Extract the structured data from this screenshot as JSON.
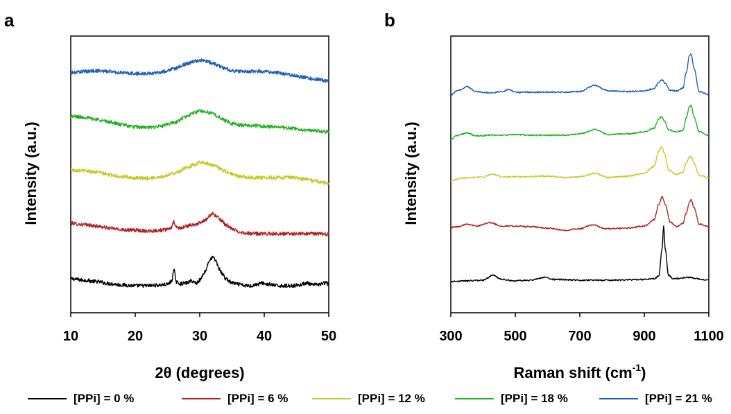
{
  "chart_data": [
    {
      "panel": "a",
      "type": "line",
      "xlabel": "2θ (degrees)",
      "ylabel": "Intensity (a.u.)",
      "xlim": [
        10,
        50
      ],
      "xticks": [
        10,
        20,
        30,
        40,
        50
      ],
      "y_tick_labels": false,
      "box": "left-bottom-right-top",
      "series": [
        {
          "name": "[PPi] = 0 %",
          "color": "#000000",
          "offset": 0,
          "x": [
            10,
            12,
            14,
            16,
            18,
            20,
            22,
            24,
            25,
            25.6,
            26,
            26.4,
            27,
            28,
            28.7,
            29.5,
            30,
            30.8,
            31.5,
            32,
            32.5,
            33,
            33.6,
            34,
            35,
            36,
            37,
            38,
            39,
            39.6,
            40.5,
            42,
            44,
            45.5,
            46.5,
            47.5,
            48.5,
            49.5,
            50
          ],
          "y": [
            18,
            16,
            14,
            11,
            9,
            8,
            8,
            9,
            10,
            14,
            30,
            13,
            11,
            12,
            15,
            12,
            16,
            28,
            44,
            49,
            44,
            32,
            24,
            18,
            12,
            10,
            8,
            8,
            10,
            12,
            10,
            8,
            8,
            9,
            12,
            9,
            10,
            12,
            10
          ]
        },
        {
          "name": "[PPi] = 6 %",
          "color": "#b22222",
          "offset": 70,
          "x": [
            10,
            12,
            14,
            16,
            18,
            20,
            22,
            24,
            25,
            25.6,
            26,
            26.4,
            27,
            28,
            29,
            30,
            30.8,
            31.5,
            32,
            32.6,
            33.4,
            34,
            35,
            36,
            37,
            38,
            40,
            42,
            44,
            46,
            48,
            50
          ],
          "y": [
            28,
            26,
            24,
            21,
            19,
            18,
            17,
            18,
            19,
            22,
            30,
            22,
            21,
            24,
            26,
            28,
            32,
            39,
            42,
            38,
            32,
            26,
            20,
            16,
            14,
            13,
            13,
            13,
            13,
            13,
            13,
            12
          ]
        },
        {
          "name": "[PPi] = 12 %",
          "color": "#c8c828",
          "offset": 150,
          "x": [
            10,
            12,
            14,
            16,
            18,
            20,
            22,
            24,
            26,
            28,
            29,
            30,
            31,
            32,
            33,
            34,
            35,
            36,
            38,
            40,
            42,
            44,
            46,
            48,
            50
          ],
          "y": [
            25,
            24,
            22,
            18,
            15,
            13,
            13,
            15,
            20,
            28,
            32,
            36,
            35,
            32,
            28,
            23,
            19,
            16,
            14,
            14,
            14,
            14,
            12,
            9,
            5
          ]
        },
        {
          "name": "[PPi] = 18 %",
          "color": "#22b022",
          "offset": 220,
          "x": [
            10,
            12,
            14,
            16,
            18,
            20,
            22,
            24,
            26,
            28,
            29,
            30,
            31,
            32,
            33,
            34,
            35,
            36,
            38,
            40,
            42,
            44,
            46,
            48,
            50
          ],
          "y": [
            32,
            31,
            28,
            24,
            20,
            17,
            16,
            18,
            23,
            32,
            37,
            40,
            39,
            36,
            31,
            26,
            22,
            20,
            19,
            18,
            17,
            15,
            13,
            11,
            10
          ]
        },
        {
          "name": "[PPi] = 21 %",
          "color": "#1f5fb8",
          "offset": 290,
          "x": [
            10,
            12,
            14,
            16,
            18,
            20,
            22,
            24,
            26,
            28,
            29,
            30,
            31,
            32,
            33,
            34,
            35,
            36,
            38,
            40,
            42,
            44,
            46,
            48,
            50
          ],
          "y": [
            25,
            27,
            28,
            27,
            25,
            24,
            24,
            26,
            31,
            38,
            41,
            43,
            42,
            39,
            35,
            31,
            28,
            27,
            27,
            27,
            25,
            22,
            19,
            16,
            13
          ]
        }
      ]
    },
    {
      "panel": "b",
      "type": "line",
      "xlabel": "Raman shift (cm",
      "xlabel_sup": "-1",
      "xlabel_end": ")",
      "ylabel": "Intensity (a.u.)",
      "xlim": [
        300,
        1100
      ],
      "xticks": [
        300,
        500,
        700,
        900,
        1100
      ],
      "y_tick_labels": false,
      "box": "left-bottom-right-top",
      "series": [
        {
          "name": "[PPi] = 0 %",
          "color": "#000000",
          "offset": 0,
          "x": [
            300,
            350,
            400,
            430,
            460,
            500,
            550,
            590,
            620,
            700,
            800,
            900,
            930,
            945,
            955,
            960,
            965,
            975,
            990,
            1040,
            1060,
            1100
          ],
          "y": [
            4,
            5,
            6,
            13,
            7,
            5,
            6,
            10,
            7,
            6,
            6,
            7,
            8,
            12,
            50,
            84,
            50,
            13,
            8,
            10,
            8,
            6
          ]
        },
        {
          "name": "[PPi] = 6 %",
          "color": "#b22222",
          "offset": 70,
          "x": [
            300,
            320,
            350,
            380,
            420,
            460,
            500,
            550,
            600,
            650,
            700,
            740,
            780,
            850,
            900,
            930,
            945,
            955,
            965,
            980,
            1000,
            1020,
            1030,
            1040,
            1045,
            1055,
            1070,
            1100
          ],
          "y": [
            12,
            13,
            17,
            14,
            19,
            14,
            14,
            13,
            11,
            8,
            10,
            16,
            10,
            11,
            14,
            23,
            45,
            56,
            45,
            20,
            13,
            18,
            33,
            48,
            52,
            40,
            17,
            13
          ]
        },
        {
          "name": "[PPi] = 12 %",
          "color": "#c8c828",
          "offset": 140,
          "x": [
            300,
            350,
            400,
            430,
            460,
            500,
            600,
            650,
            700,
            745,
            790,
            850,
            900,
            930,
            945,
            953,
            962,
            975,
            1000,
            1020,
            1030,
            1040,
            1045,
            1055,
            1070,
            1100
          ],
          "y": [
            10,
            14,
            15,
            19,
            15,
            15,
            16,
            14,
            15,
            20,
            14,
            16,
            20,
            30,
            52,
            58,
            50,
            25,
            18,
            22,
            35,
            44,
            44,
            34,
            17,
            14
          ]
        },
        {
          "name": "[PPi] = 18 %",
          "color": "#22b022",
          "offset": 200,
          "x": [
            300,
            320,
            350,
            380,
            420,
            460,
            500,
            550,
            650,
            700,
            745,
            790,
            850,
            900,
            930,
            945,
            953,
            962,
            975,
            1000,
            1020,
            1030,
            1040,
            1045,
            1055,
            1070,
            1100
          ],
          "y": [
            9,
            15,
            18,
            14,
            15,
            15,
            16,
            15,
            15,
            17,
            23,
            16,
            17,
            20,
            25,
            38,
            42,
            36,
            23,
            20,
            22,
            40,
            56,
            58,
            40,
            20,
            15
          ]
        },
        {
          "name": "[PPi] = 21 %",
          "color": "#1f5fb8",
          "offset": 260,
          "x": [
            300,
            320,
            350,
            380,
            420,
            460,
            480,
            500,
            550,
            650,
            700,
            745,
            790,
            850,
            900,
            930,
            945,
            955,
            965,
            980,
            1000,
            1020,
            1030,
            1040,
            1045,
            1055,
            1070,
            1100
          ],
          "y": [
            13,
            19,
            25,
            18,
            16,
            18,
            21,
            17,
            17,
            17,
            18,
            27,
            19,
            18,
            19,
            22,
            31,
            35,
            30,
            20,
            19,
            23,
            45,
            70,
            72,
            50,
            18,
            14
          ]
        }
      ]
    }
  ],
  "legend": {
    "placement": "bottom",
    "items": [
      {
        "label": "[PPi] = 0 %",
        "color": "#000000"
      },
      {
        "label": "[PPi] = 6 %",
        "color": "#b22222"
      },
      {
        "label": "[PPi] = 12 %",
        "color": "#c8c828"
      },
      {
        "label": "[PPi] = 18 %",
        "color": "#22b022"
      },
      {
        "label": "[PPi] = 21 %",
        "color": "#1f5fb8"
      }
    ]
  }
}
